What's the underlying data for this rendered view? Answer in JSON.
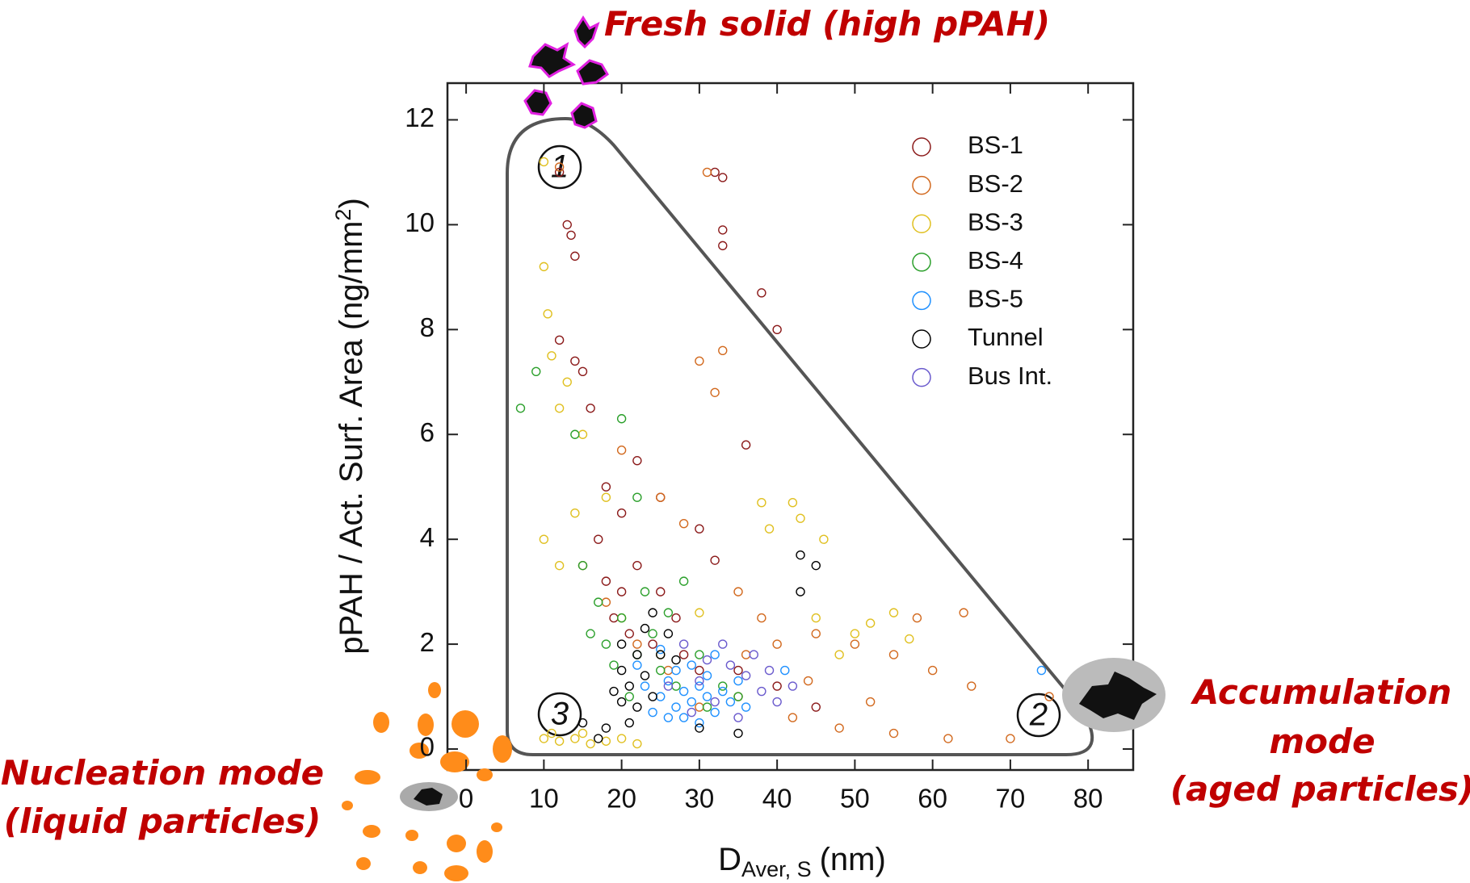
{
  "chart_data": {
    "type": "scatter",
    "x_label": {
      "main": "D",
      "sub": "Aver, S",
      "unit": "(nm)"
    },
    "y_label": {
      "main": "pPAH / Act. Surf. Area (ng/mm",
      "sup": "2",
      "end": ")"
    },
    "annotations": {
      "fresh": "Fresh solid (high pPAH)",
      "accumulation": [
        "Accumulation",
        "mode",
        "(aged particles)"
      ],
      "nucleation": [
        "Nucleation mode",
        "(liquid particles)"
      ],
      "regions": [
        "1",
        "2",
        "3"
      ]
    },
    "xlim": [
      -2.4,
      85.8
    ],
    "xticks": [
      0,
      10,
      20,
      30,
      40,
      50,
      60,
      70,
      80
    ],
    "ylim": [
      -0.4,
      12.7
    ],
    "yticks": [
      0,
      2,
      4,
      6,
      8,
      10,
      12
    ],
    "grid": false,
    "legend": "upper right",
    "series": [
      {
        "name": "BS-1",
        "color": "#8b1a1a",
        "x": [
          12,
          13,
          13.5,
          14,
          12,
          32,
          33,
          33,
          33,
          38,
          40,
          14,
          15,
          16,
          18,
          20,
          22,
          25,
          27,
          20,
          17,
          19,
          24,
          28,
          30,
          35,
          40,
          45,
          22,
          36,
          25,
          30,
          32,
          18,
          21
        ],
        "values": [
          11,
          10,
          9.8,
          9.4,
          7.8,
          11,
          10.9,
          9.9,
          9.6,
          8.7,
          8,
          7.4,
          7.2,
          6.5,
          5,
          4.5,
          3.5,
          3,
          2.5,
          3,
          4,
          2.5,
          2,
          1.8,
          1.5,
          1.5,
          1.2,
          0.8,
          5.5,
          5.8,
          4.8,
          4.2,
          3.6,
          3.2,
          2.2
        ]
      },
      {
        "name": "BS-2",
        "color": "#d2691e",
        "x": [
          12,
          31,
          30,
          32,
          33,
          20,
          25,
          28,
          35,
          38,
          40,
          45,
          50,
          55,
          60,
          65,
          70,
          75,
          35,
          42,
          48,
          55,
          62,
          15,
          18,
          22,
          26,
          30,
          36,
          44,
          52,
          58,
          64
        ],
        "values": [
          11.1,
          11,
          7.4,
          6.8,
          7.6,
          5.7,
          4.8,
          4.3,
          3,
          2.5,
          2,
          2.2,
          2,
          1.8,
          1.5,
          1.2,
          0.2,
          1,
          1,
          0.6,
          0.4,
          0.3,
          0.2,
          3.5,
          2.8,
          2,
          1.5,
          0.8,
          1.8,
          1.3,
          0.9,
          2.5,
          2.6
        ]
      },
      {
        "name": "BS-3",
        "color": "#e0c020",
        "x": [
          10,
          10,
          10.5,
          11,
          12,
          13,
          15,
          10,
          12,
          14,
          18,
          10,
          12,
          14,
          16,
          18,
          20,
          22,
          11,
          15,
          45,
          50,
          52,
          55,
          57,
          48,
          38,
          39,
          42,
          43,
          46,
          20,
          25,
          30
        ],
        "values": [
          11.2,
          9.2,
          8.3,
          7.5,
          6.5,
          7,
          6,
          4,
          3.5,
          4.5,
          4.8,
          0.2,
          0.15,
          0.2,
          0.1,
          0.15,
          0.2,
          0.1,
          0.3,
          0.3,
          2.5,
          2.2,
          2.4,
          2.6,
          2.1,
          1.8,
          4.7,
          4.2,
          4.7,
          4.4,
          4,
          2.5,
          1.8,
          2.6
        ]
      },
      {
        "name": "BS-4",
        "color": "#2ca02c",
        "x": [
          9,
          7,
          14,
          20,
          22,
          15,
          17,
          18,
          20,
          22,
          24,
          25,
          27,
          19,
          21,
          23,
          26,
          30,
          33,
          35,
          16,
          28,
          31
        ],
        "values": [
          7.2,
          6.5,
          6,
          6.3,
          4.8,
          3.5,
          2.8,
          2,
          2.5,
          1.8,
          2.2,
          1.5,
          1.2,
          1.6,
          1,
          3,
          2.6,
          1.8,
          1.2,
          1,
          2.2,
          3.2,
          0.8
        ]
      },
      {
        "name": "BS-5",
        "color": "#1e90ff",
        "x": [
          25,
          26,
          27,
          28,
          29,
          30,
          31,
          32,
          33,
          34,
          27,
          29,
          31,
          24,
          26,
          35,
          36,
          23,
          30,
          28,
          41,
          74,
          22,
          32,
          25
        ],
        "values": [
          1,
          1.3,
          0.8,
          1.1,
          0.9,
          1.2,
          1,
          0.7,
          1.1,
          0.9,
          1.5,
          1.6,
          1.4,
          0.7,
          0.6,
          1.3,
          0.8,
          1.2,
          0.5,
          0.6,
          1.5,
          1.5,
          1.6,
          1.8,
          1.9
        ]
      },
      {
        "name": "Tunnel",
        "color": "#000000",
        "x": [
          20,
          21,
          22,
          23,
          24,
          22,
          20,
          19,
          21,
          18,
          25,
          26,
          24,
          23,
          20,
          15,
          17,
          43,
          45,
          43,
          27,
          30,
          35
        ],
        "values": [
          1.5,
          1.2,
          0.8,
          1.4,
          1,
          1.8,
          0.9,
          1.1,
          0.5,
          0.4,
          1.8,
          2.2,
          2.6,
          2.3,
          2,
          0.5,
          0.2,
          3.7,
          3.5,
          3,
          1.7,
          0.4,
          0.3
        ]
      },
      {
        "name": "Bus Int.",
        "color": "#6a5acd",
        "x": [
          26,
          30,
          32,
          34,
          36,
          38,
          40,
          29,
          31,
          33,
          37,
          39,
          42,
          35,
          28
        ],
        "values": [
          1.2,
          1.3,
          0.9,
          1.6,
          1.4,
          1.1,
          0.9,
          0.7,
          1.7,
          2,
          1.8,
          1.5,
          1.2,
          0.6,
          2
        ]
      }
    ]
  }
}
